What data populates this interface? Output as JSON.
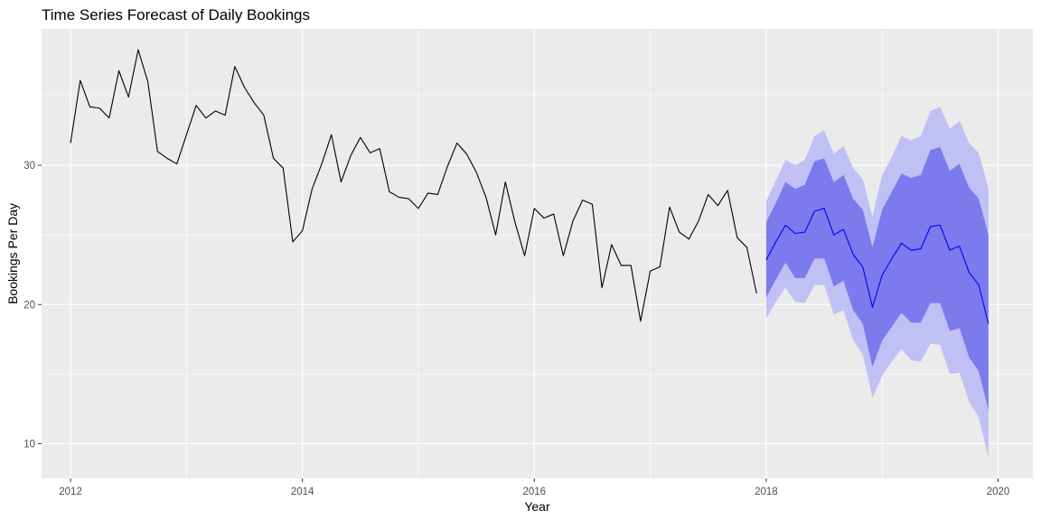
{
  "chart_data": {
    "type": "line",
    "title": "Time Series Forecast of Daily Bookings",
    "xlabel": "Year",
    "ylabel": "Bookings Per Day",
    "xlim": [
      2011.75,
      2020.3
    ],
    "ylim": [
      7.5,
      39.8
    ],
    "x_ticks": [
      2012,
      2014,
      2016,
      2018,
      2020
    ],
    "x_tick_labels": [
      "2012",
      "2014",
      "2016",
      "2018",
      "2020"
    ],
    "y_ticks": [
      10,
      20,
      30
    ],
    "y_tick_labels": [
      "10",
      "20",
      "30"
    ],
    "grid": true,
    "legend": "none",
    "colors": {
      "panel": "#ebebeb",
      "grid_major": "#ffffff",
      "history_line": "#000000",
      "forecast_line": "#0000ff",
      "band_80": "#7b7bee",
      "band_95": "#c0c0f5"
    },
    "series": [
      {
        "start": 2012.0,
        "step": 0.08333333,
        "values": [
          31.6,
          36.1,
          34.2,
          34.1,
          33.4,
          36.8,
          34.9,
          38.3,
          36.0,
          31.0,
          30.5,
          30.1,
          32.2,
          34.3,
          33.4,
          33.9,
          33.6,
          37.1,
          35.6,
          34.5,
          33.6,
          30.5,
          29.8,
          24.5,
          25.3,
          28.3,
          30.1,
          32.2,
          28.8,
          30.7,
          32.0,
          30.9,
          31.2,
          28.1,
          27.7,
          27.6,
          26.9,
          28.0,
          27.9,
          29.9,
          31.6,
          30.8,
          29.5,
          27.7,
          25.0,
          28.8,
          25.9,
          23.5,
          26.9,
          26.2,
          26.5,
          23.5,
          26.0,
          27.5,
          27.2,
          21.2,
          24.3,
          22.8,
          22.8,
          18.8,
          22.4,
          22.7,
          27.0,
          25.2,
          24.7,
          26.0,
          27.9,
          27.1,
          28.2,
          24.8,
          24.1,
          20.8
        ]
      },
      {
        "start": 2018.0,
        "step": 0.08333333,
        "point": [
          23.2,
          24.5,
          25.7,
          25.1,
          25.2,
          26.7,
          26.9,
          25.0,
          25.4,
          23.6,
          22.7,
          19.8,
          22.1,
          23.3,
          24.4,
          23.9,
          24.0,
          25.6,
          25.7,
          23.9,
          24.2,
          22.3,
          21.4,
          18.6
        ],
        "lo80": [
          20.5,
          21.8,
          23.0,
          21.9,
          21.9,
          23.3,
          23.3,
          21.3,
          21.7,
          19.6,
          18.6,
          15.5,
          17.4,
          18.4,
          19.4,
          18.7,
          18.7,
          20.1,
          20.1,
          18.1,
          18.3,
          16.2,
          15.2,
          12.4
        ],
        "hi80": [
          25.9,
          27.3,
          28.8,
          28.3,
          28.6,
          30.3,
          30.5,
          28.8,
          29.3,
          27.6,
          26.8,
          24.1,
          26.8,
          28.1,
          29.4,
          29.1,
          29.3,
          31.1,
          31.3,
          29.6,
          30.1,
          28.4,
          27.6,
          25.0
        ],
        "lo95": [
          19.0,
          20.2,
          21.2,
          20.2,
          20.1,
          21.4,
          21.4,
          19.3,
          19.6,
          17.4,
          16.4,
          13.3,
          14.9,
          15.9,
          16.8,
          16.0,
          15.9,
          17.2,
          17.1,
          15.0,
          15.1,
          13.0,
          11.9,
          9.0
        ],
        "hi95": [
          27.4,
          28.9,
          30.4,
          30.0,
          30.4,
          32.1,
          32.5,
          30.8,
          31.4,
          29.8,
          29.0,
          26.3,
          29.3,
          30.6,
          32.1,
          31.8,
          32.1,
          33.9,
          34.2,
          32.6,
          33.2,
          31.6,
          30.9,
          28.3
        ]
      }
    ]
  }
}
